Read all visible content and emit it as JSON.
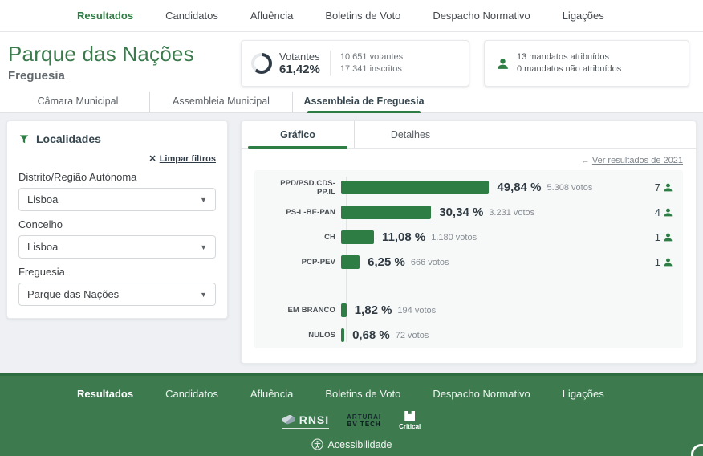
{
  "colors": {
    "accent_green": "#2e7d44",
    "title_green": "#3a7a4c",
    "footer_green": "#3d7b4f",
    "bar_color": "#2e7d44",
    "ring_dark": "#2f3b46"
  },
  "top_nav": {
    "active": "Resultados",
    "items": [
      "Resultados",
      "Candidatos",
      "Afluência",
      "Boletins de Voto",
      "Despacho Normativo",
      "Ligações"
    ]
  },
  "header": {
    "title": "Parque das Nações",
    "subtitle": "Freguesia",
    "turnout": {
      "label": "Votantes",
      "value": "61,42%",
      "percent": 61.42,
      "voters": "10.651 votantes",
      "registered": "17.341 inscritos"
    },
    "mandates": {
      "assigned": "13 mandatos atribuídos",
      "unassigned": "0 mandatos não atribuídos"
    }
  },
  "level_tabs": {
    "active": "Assembleia de Freguesia",
    "items": [
      "Câmara Municipal",
      "Assembleia Municipal",
      "Assembleia de Freguesia"
    ]
  },
  "filters": {
    "title": "Localidades",
    "clear_x": "✕",
    "clear_label": "Limpar filtros",
    "fields": [
      {
        "label": "Distrito/Região Autónoma",
        "value": "Lisboa"
      },
      {
        "label": "Concelho",
        "value": "Lisboa"
      },
      {
        "label": "Freguesia",
        "value": "Parque das Nações"
      }
    ]
  },
  "results": {
    "tabs": [
      "Gráfico",
      "Detalhes"
    ],
    "active_tab": "Gráfico",
    "back_arrow": "←",
    "previous_link": "Ver resultados de 2021"
  },
  "chart_data": {
    "type": "bar",
    "orientation": "horizontal",
    "xlim": [
      0,
      100
    ],
    "bar_color": "#2e7d44",
    "categories": [
      "PPD/PSD.CDS-PP.IL",
      "PS-L-BE-PAN",
      "CH",
      "PCP-PEV",
      "EM BRANCO",
      "NULOS"
    ],
    "values": [
      49.84,
      30.34,
      11.08,
      6.25,
      1.82,
      0.68
    ],
    "rows": [
      {
        "party": "PPD/PSD.CDS-PP.IL",
        "percent_label": "49,84 %",
        "votes_label": "5.308 votos",
        "mandates": "7"
      },
      {
        "party": "PS-L-BE-PAN",
        "percent_label": "30,34 %",
        "votes_label": "3.231 votos",
        "mandates": "4"
      },
      {
        "party": "CH",
        "percent_label": "11,08 %",
        "votes_label": "1.180 votos",
        "mandates": "1"
      },
      {
        "party": "PCP-PEV",
        "percent_label": "6,25 %",
        "votes_label": "666 votos",
        "mandates": "1"
      },
      {
        "party": "EM BRANCO",
        "percent_label": "1,82 %",
        "votes_label": "194 votos",
        "mandates": ""
      },
      {
        "party": "NULOS",
        "percent_label": "0,68 %",
        "votes_label": "72 votos",
        "mandates": ""
      }
    ]
  },
  "footer": {
    "nav_items": [
      "Resultados",
      "Candidatos",
      "Afluência",
      "Boletins de Voto",
      "Despacho Normativo",
      "Ligações"
    ],
    "logos": {
      "rnsi": "RNSI",
      "arturai_line1": "ARTURAI",
      "arturai_line2": "BV TECH",
      "critical": "Critical"
    },
    "accessibility_label": "Acessibilidade"
  }
}
